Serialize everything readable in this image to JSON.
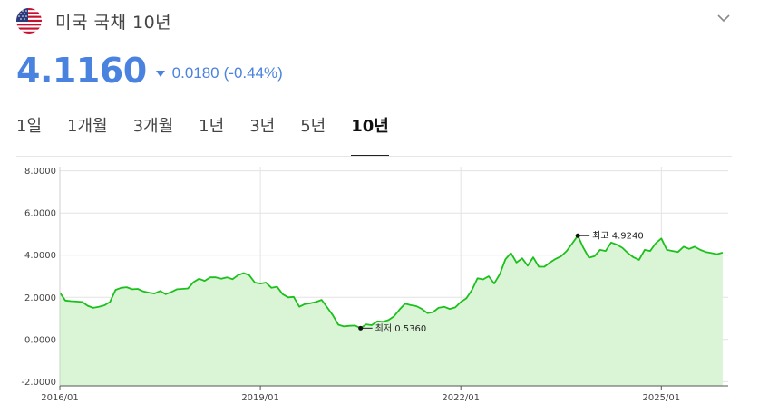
{
  "header": {
    "flag_icon": "us-flag-icon",
    "title": "미국 국채 10년",
    "collapse_icon": "chevron-down-icon"
  },
  "quote": {
    "price": "4.1160",
    "direction_icon": "down-triangle-icon",
    "change": "0.0180",
    "change_pct": "(-0.44%)",
    "color": "#4a82e0"
  },
  "tabs": [
    {
      "label": "1일",
      "active": false
    },
    {
      "label": "1개월",
      "active": false
    },
    {
      "label": "3개월",
      "active": false
    },
    {
      "label": "1년",
      "active": false
    },
    {
      "label": "3년",
      "active": false
    },
    {
      "label": "5년",
      "active": false
    },
    {
      "label": "10년",
      "active": true
    }
  ],
  "chart_data": {
    "type": "area",
    "title": "",
    "xlabel": "",
    "ylabel": "",
    "y_ticks": [
      "8.0000",
      "6.0000",
      "4.0000",
      "2.0000",
      "0.0000",
      "-2.0000"
    ],
    "y_tick_values": [
      8,
      6,
      4,
      2,
      0,
      -2
    ],
    "ylim": [
      -2.2,
      8.2
    ],
    "x_ticks": [
      "2016/01",
      "2019/01",
      "2022/01",
      "2025/01"
    ],
    "x_tick_values": [
      "2016-01",
      "2019-01",
      "2022-01",
      "2025-01"
    ],
    "xlim": [
      "2016-01",
      "2026-01"
    ],
    "grid": true,
    "line_color": "#1cc01c",
    "fill_color": "#d9f5d6",
    "series": [
      {
        "x": [
          "2016-01",
          "2016-02",
          "2016-03",
          "2016-04",
          "2016-05",
          "2016-06",
          "2016-07",
          "2016-08",
          "2016-09",
          "2016-10",
          "2016-11",
          "2016-12",
          "2017-01",
          "2017-02",
          "2017-03",
          "2017-04",
          "2017-05",
          "2017-06",
          "2017-07",
          "2017-08",
          "2017-09",
          "2017-10",
          "2017-11",
          "2017-12",
          "2018-01",
          "2018-02",
          "2018-03",
          "2018-04",
          "2018-05",
          "2018-06",
          "2018-07",
          "2018-08",
          "2018-09",
          "2018-10",
          "2018-11",
          "2018-12",
          "2019-01",
          "2019-02",
          "2019-03",
          "2019-04",
          "2019-05",
          "2019-06",
          "2019-07",
          "2019-08",
          "2019-09",
          "2019-10",
          "2019-11",
          "2019-12",
          "2020-01",
          "2020-02",
          "2020-03",
          "2020-04",
          "2020-05",
          "2020-06",
          "2020-07",
          "2020-08",
          "2020-09",
          "2020-10",
          "2020-11",
          "2020-12",
          "2021-01",
          "2021-02",
          "2021-03",
          "2021-04",
          "2021-05",
          "2021-06",
          "2021-07",
          "2021-08",
          "2021-09",
          "2021-10",
          "2021-11",
          "2021-12",
          "2022-01",
          "2022-02",
          "2022-03",
          "2022-04",
          "2022-05",
          "2022-06",
          "2022-07",
          "2022-08",
          "2022-09",
          "2022-10",
          "2022-11",
          "2022-12",
          "2023-01",
          "2023-02",
          "2023-03",
          "2023-04",
          "2023-05",
          "2023-06",
          "2023-07",
          "2023-08",
          "2023-09",
          "2023-10",
          "2023-11",
          "2023-12",
          "2024-01",
          "2024-02",
          "2024-03",
          "2024-04",
          "2024-05",
          "2024-06",
          "2024-07",
          "2024-08",
          "2024-09",
          "2024-10",
          "2024-11",
          "2024-12",
          "2025-01",
          "2025-02",
          "2025-03",
          "2025-04",
          "2025-05",
          "2025-06",
          "2025-07",
          "2025-08",
          "2025-09",
          "2025-10",
          "2025-11",
          "2025-12"
        ],
        "values": [
          2.22,
          1.85,
          1.82,
          1.8,
          1.78,
          1.6,
          1.5,
          1.55,
          1.62,
          1.78,
          2.35,
          2.45,
          2.48,
          2.38,
          2.4,
          2.28,
          2.22,
          2.18,
          2.3,
          2.15,
          2.25,
          2.38,
          2.4,
          2.42,
          2.72,
          2.88,
          2.78,
          2.95,
          2.95,
          2.88,
          2.95,
          2.86,
          3.05,
          3.15,
          3.05,
          2.7,
          2.65,
          2.7,
          2.45,
          2.5,
          2.15,
          2.0,
          2.02,
          1.55,
          1.68,
          1.72,
          1.78,
          1.88,
          1.52,
          1.16,
          0.7,
          0.62,
          0.65,
          0.66,
          0.54,
          0.72,
          0.68,
          0.86,
          0.84,
          0.92,
          1.1,
          1.42,
          1.7,
          1.63,
          1.58,
          1.45,
          1.25,
          1.3,
          1.5,
          1.55,
          1.45,
          1.52,
          1.78,
          1.95,
          2.35,
          2.9,
          2.85,
          3.0,
          2.65,
          3.1,
          3.8,
          4.1,
          3.65,
          3.85,
          3.5,
          3.9,
          3.45,
          3.45,
          3.65,
          3.82,
          3.95,
          4.2,
          4.55,
          4.92,
          4.35,
          3.88,
          3.95,
          4.25,
          4.2,
          4.6,
          4.5,
          4.35,
          4.1,
          3.9,
          3.78,
          4.25,
          4.2,
          4.57,
          4.79,
          4.25,
          4.2,
          4.15,
          4.4,
          4.3,
          4.4,
          4.25,
          4.15,
          4.1,
          4.05,
          4.12
        ]
      }
    ],
    "annotations": [
      {
        "label": "최고 4.9240",
        "x": "2023-10",
        "y": 4.924
      },
      {
        "label": "최저 0.5360",
        "x": "2020-07",
        "y": 0.536
      }
    ]
  }
}
